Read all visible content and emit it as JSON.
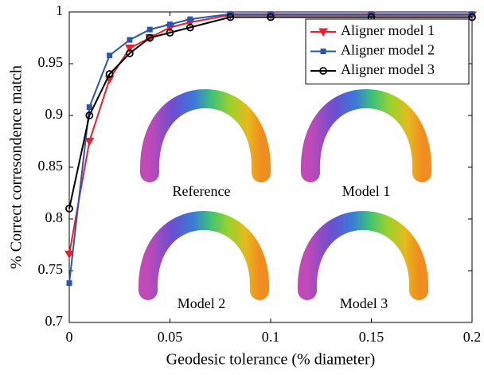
{
  "chart_data": {
    "type": "line",
    "x_label": "Geodesic tolerance (% diameter)",
    "y_label": "% Correct corresondence match",
    "x": [
      0,
      0.01,
      0.02,
      0.03,
      0.04,
      0.05,
      0.06,
      0.08,
      0.1,
      0.15,
      0.2
    ],
    "series": [
      {
        "name": "Aligner model 1",
        "color": "#e8202a",
        "marker": "triangle-down",
        "values": [
          0.766,
          0.875,
          0.935,
          0.965,
          0.975,
          0.985,
          0.99,
          0.997,
          0.997,
          0.997,
          0.997
        ]
      },
      {
        "name": "Aligner model 2",
        "color": "#2a55b0",
        "marker": "square",
        "values": [
          0.738,
          0.908,
          0.958,
          0.973,
          0.983,
          0.988,
          0.993,
          0.998,
          0.998,
          0.998,
          0.998
        ]
      },
      {
        "name": "Aligner model 3",
        "color": "#000000",
        "marker": "circle",
        "values": [
          0.81,
          0.9,
          0.94,
          0.96,
          0.975,
          0.98,
          0.985,
          0.995,
          0.995,
          0.995,
          0.995
        ]
      }
    ],
    "xlim": [
      0,
      0.2
    ],
    "xticks": [
      0,
      0.05,
      0.1,
      0.15,
      0.2
    ],
    "ylim": [
      0.7,
      1
    ],
    "yticks": [
      0.7,
      0.75,
      0.8,
      0.85,
      0.9,
      0.95,
      1
    ],
    "legend": "top-right",
    "annotations": [
      "Reference",
      "Model 1",
      "Model 2",
      "Model 3"
    ]
  }
}
